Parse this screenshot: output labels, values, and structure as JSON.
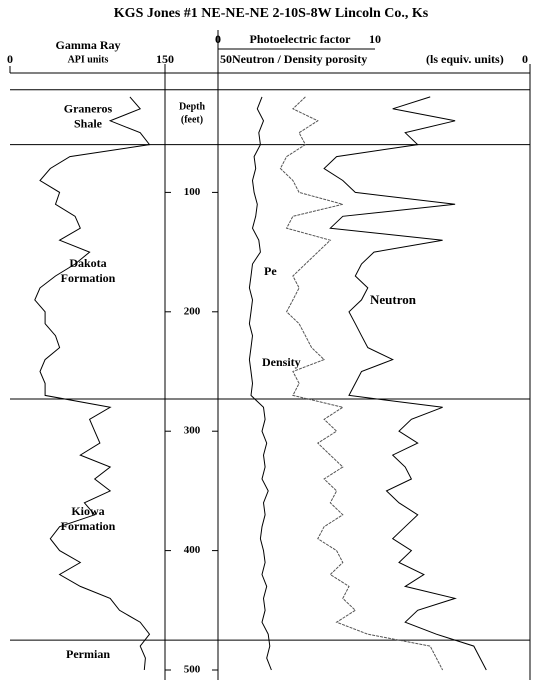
{
  "chart_data": {
    "type": "well-log",
    "title": "KGS  Jones #1    NE-NE-NE   2-10S-8W  Lincoln Co., Ks",
    "ylabel_lines": [
      "Depth",
      "(feet)"
    ],
    "ylim": [
      0,
      500
    ],
    "yticks": [
      100,
      200,
      300,
      400,
      500
    ],
    "depth": [
      20,
      30,
      40,
      50,
      60,
      70,
      80,
      90,
      100,
      110,
      120,
      130,
      140,
      150,
      160,
      170,
      180,
      190,
      200,
      210,
      220,
      230,
      240,
      250,
      260,
      270,
      280,
      290,
      300,
      310,
      320,
      330,
      340,
      350,
      360,
      370,
      380,
      390,
      400,
      410,
      420,
      430,
      440,
      450,
      460,
      470,
      480,
      490,
      500
    ],
    "formations": [
      {
        "label_lines": [
          "Graneros",
          "Shale"
        ],
        "top": 14
      },
      {
        "label_lines": [
          "Dakota",
          "Formation"
        ],
        "top": 60
      },
      {
        "label_lines": [
          "Kiowa",
          "Formation"
        ],
        "top": 273
      },
      {
        "label_lines": [
          "Permian"
        ],
        "top": 475
      }
    ],
    "gamma": {
      "label": "Gamma Ray",
      "units": "API units",
      "xlim": [
        0,
        150
      ],
      "xticks": [
        0,
        150
      ],
      "color": "#000000",
      "values": [
        116,
        126,
        97,
        126,
        135,
        58,
        39,
        29,
        48,
        44,
        63,
        68,
        48,
        77,
        63,
        44,
        29,
        24,
        34,
        34,
        44,
        48,
        34,
        29,
        34,
        34,
        97,
        77,
        82,
        87,
        68,
        97,
        82,
        97,
        72,
        82,
        48,
        39,
        48,
        68,
        48,
        68,
        97,
        106,
        126,
        135,
        126,
        131,
        130
      ]
    },
    "pe": {
      "name": "Pe",
      "label": "Photoelectric  factor",
      "xlim": [
        0,
        10
      ],
      "xticks": [
        0,
        10
      ],
      "color": "#000000",
      "values": [
        2.8,
        2.5,
        2.9,
        2.6,
        2.7,
        2.3,
        2.4,
        2.2,
        2.3,
        2.5,
        2.4,
        2.2,
        2.6,
        2.7,
        2.2,
        2.1,
        2.0,
        2.2,
        2.1,
        2.0,
        2.2,
        2.1,
        2.0,
        2.1,
        2.2,
        2.1,
        2.9,
        3.0,
        2.8,
        3.1,
        2.9,
        3.0,
        2.8,
        3.2,
        2.9,
        3.0,
        2.8,
        2.7,
        2.9,
        3.0,
        2.8,
        3.1,
        2.9,
        3.0,
        2.8,
        3.2,
        3.3,
        3.1,
        3.4
      ]
    },
    "porosity": {
      "label": "Neutron / Density  porosity",
      "units": "(ls equiv. units)",
      "xlim": [
        50,
        0
      ],
      "xticks": [
        50,
        0
      ],
      "series": [
        {
          "name": "Neutron",
          "color": "#000000",
          "values": [
            16,
            22,
            12,
            20,
            18,
            31,
            33,
            30,
            28,
            12,
            30,
            32,
            14,
            25,
            27,
            28,
            26,
            27,
            29,
            28,
            27,
            26,
            22,
            27,
            28,
            29,
            14,
            19,
            21,
            18,
            22,
            20,
            19,
            23,
            21,
            18,
            20,
            22,
            19,
            21,
            17,
            20,
            12,
            18,
            20,
            15,
            9,
            8,
            7
          ]
        },
        {
          "name": "Density",
          "color": "#555555",
          "values": [
            36,
            38,
            34,
            37,
            36,
            39,
            40,
            38,
            37,
            30,
            38,
            39,
            32,
            34,
            36,
            38,
            37,
            38,
            39,
            37,
            36,
            35,
            33,
            38,
            37,
            38,
            30,
            33,
            31,
            34,
            32,
            30,
            33,
            31,
            32,
            30,
            33,
            34,
            31,
            30,
            32,
            29,
            30,
            28,
            31,
            26,
            16,
            15,
            14
          ]
        }
      ]
    }
  }
}
